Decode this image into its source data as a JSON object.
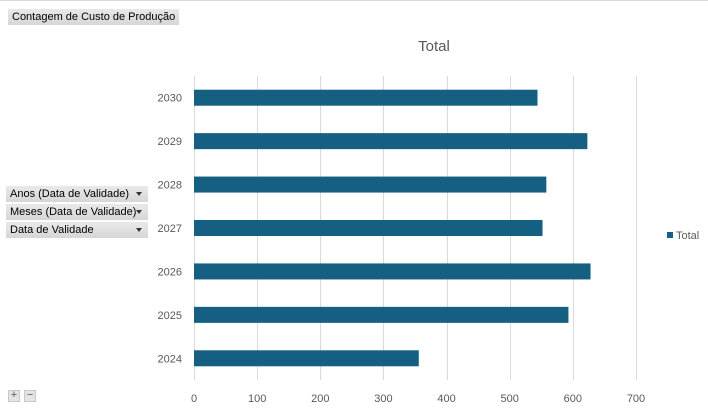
{
  "header": {
    "value_field_button": "Contagem de Custo de Produção"
  },
  "filters": [
    {
      "label": "Anos (Data de Validade)",
      "icon": "dropdown-arrow-icon"
    },
    {
      "label": "Meses (Data de Validade)",
      "icon": "dropdown-arrow-icon"
    },
    {
      "label": "Data de Validade",
      "icon": "dropdown-arrow-icon"
    }
  ],
  "controls": {
    "expand_label": "+",
    "collapse_label": "−"
  },
  "colors": {
    "bar": "#156082",
    "gridline": "#d9d9d9"
  },
  "chart_data": {
    "type": "bar",
    "orientation": "horizontal",
    "title": "Total",
    "categories": [
      "2024",
      "2025",
      "2026",
      "2027",
      "2028",
      "2029",
      "2030"
    ],
    "series": [
      {
        "name": "Total",
        "values": [
          356,
          593,
          628,
          552,
          558,
          623,
          544
        ]
      }
    ],
    "xlim": [
      0,
      700
    ],
    "xticks": [
      0,
      100,
      200,
      300,
      400,
      500,
      600,
      700
    ],
    "xlabel": "",
    "ylabel": "",
    "grid": true,
    "legend": "right"
  }
}
